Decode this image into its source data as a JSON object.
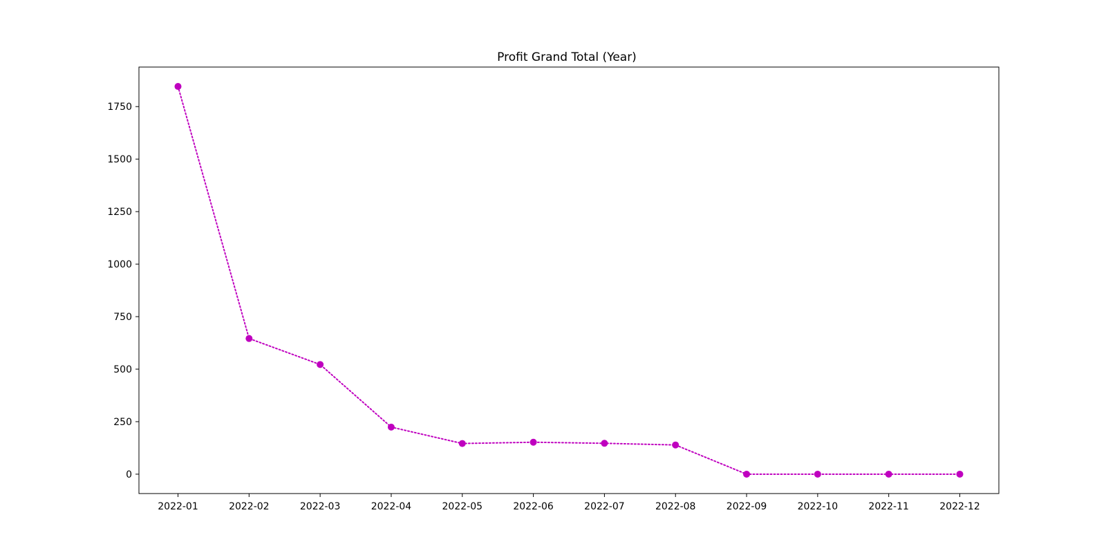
{
  "chart_data": {
    "type": "line",
    "title": "Profit Grand Total (Year)",
    "xlabel": "",
    "ylabel": "",
    "categories": [
      "2022-01",
      "2022-02",
      "2022-03",
      "2022-04",
      "2022-05",
      "2022-06",
      "2022-07",
      "2022-08",
      "2022-09",
      "2022-10",
      "2022-11",
      "2022-12"
    ],
    "series": [
      {
        "values": [
          1846,
          646,
          522,
          224,
          146,
          152,
          147,
          139,
          0,
          0,
          0,
          0
        ],
        "color": "#bf00bf",
        "line_style": "dotted",
        "marker": "circle"
      }
    ],
    "yticks": [
      0,
      250,
      500,
      750,
      1000,
      1250,
      1500,
      1750
    ],
    "ylim": [
      -92.3,
      1938.3
    ],
    "grid": false,
    "legend": "none"
  }
}
